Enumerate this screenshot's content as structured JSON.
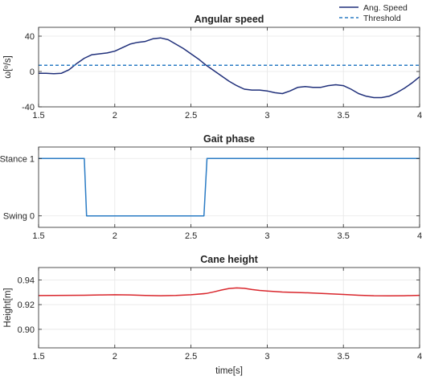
{
  "chart_data": [
    {
      "type": "line",
      "title": "Angular speed",
      "ylabel": "ω[º/s]",
      "xlabel": "",
      "xlim": [
        1.5,
        4
      ],
      "ylim": [
        -40,
        50
      ],
      "xticks": [
        "1.5",
        "2",
        "2.5",
        "3",
        "3.5",
        "4"
      ],
      "yticks": [
        {
          "value": 40,
          "label": "40"
        },
        {
          "value": 0,
          "label": "0"
        },
        {
          "value": -40,
          "label": "-40"
        }
      ],
      "grid": true,
      "legend": "top-right",
      "series": [
        {
          "name": "Ang. Speed",
          "color": "#1f2f7a",
          "style": "solid",
          "x": [
            1.5,
            1.55,
            1.6,
            1.65,
            1.7,
            1.75,
            1.8,
            1.85,
            1.9,
            1.95,
            2.0,
            2.05,
            2.1,
            2.15,
            2.2,
            2.25,
            2.3,
            2.35,
            2.4,
            2.45,
            2.5,
            2.55,
            2.6,
            2.65,
            2.7,
            2.75,
            2.8,
            2.85,
            2.9,
            2.95,
            3.0,
            3.05,
            3.1,
            3.15,
            3.2,
            3.25,
            3.3,
            3.35,
            3.4,
            3.45,
            3.5,
            3.55,
            3.6,
            3.65,
            3.7,
            3.75,
            3.8,
            3.85,
            3.9,
            3.95,
            4.0
          ],
          "y": [
            -2,
            -2,
            -2.5,
            -2,
            2,
            9,
            15,
            19,
            20,
            21,
            23,
            27,
            31,
            33,
            34,
            37,
            38,
            36,
            31,
            26,
            20,
            14,
            7,
            1,
            -5,
            -11,
            -16,
            -20,
            -21,
            -21,
            -22,
            -24,
            -25,
            -22,
            -18,
            -17,
            -18,
            -18,
            -16,
            -15,
            -16,
            -20,
            -25,
            -28,
            -29.5,
            -29.5,
            -28,
            -24,
            -19,
            -13,
            -6
          ]
        },
        {
          "name": "Threshold",
          "color": "#2a7bc4",
          "style": "dashed",
          "x": [
            1.5,
            4.0
          ],
          "y": [
            7,
            7
          ]
        }
      ]
    },
    {
      "type": "line",
      "title": "Gait phase",
      "ylabel": "",
      "xlabel": "",
      "xlim": [
        1.5,
        4
      ],
      "ylim": [
        -0.2,
        1.2
      ],
      "xticks": [
        "1.5",
        "2",
        "2.5",
        "3",
        "3.5",
        "4"
      ],
      "yticks": [
        {
          "value": 1,
          "label": "Stance 1"
        },
        {
          "value": 0,
          "label": "Swing 0"
        }
      ],
      "grid": true,
      "series": [
        {
          "color": "#2a7bc4",
          "style": "solid",
          "x": [
            1.5,
            1.8,
            1.815,
            2.585,
            2.605,
            4.0
          ],
          "y": [
            1,
            1,
            0,
            0,
            1,
            1
          ]
        }
      ]
    },
    {
      "type": "line",
      "title": "Cane height",
      "ylabel": "Height[m]",
      "xlabel": "time[s]",
      "xlim": [
        1.5,
        4
      ],
      "ylim": [
        0.885,
        0.95
      ],
      "xticks": [
        "1.5",
        "2",
        "2.5",
        "3",
        "3.5",
        "4"
      ],
      "yticks": [
        {
          "value": 0.94,
          "label": "0.94"
        },
        {
          "value": 0.92,
          "label": "0.92"
        },
        {
          "value": 0.9,
          "label": "0.90"
        }
      ],
      "grid": true,
      "series": [
        {
          "color": "#d9262c",
          "style": "solid",
          "x": [
            1.5,
            1.6,
            1.7,
            1.8,
            1.9,
            2.0,
            2.1,
            2.2,
            2.3,
            2.4,
            2.5,
            2.6,
            2.65,
            2.7,
            2.75,
            2.8,
            2.85,
            2.9,
            2.95,
            3.0,
            3.1,
            3.2,
            3.3,
            3.4,
            3.5,
            3.6,
            3.7,
            3.8,
            3.9,
            4.0
          ],
          "y": [
            0.9273,
            0.9274,
            0.9275,
            0.9276,
            0.9278,
            0.928,
            0.9278,
            0.9274,
            0.9272,
            0.9274,
            0.928,
            0.929,
            0.9303,
            0.9318,
            0.933,
            0.9335,
            0.9332,
            0.9322,
            0.9315,
            0.931,
            0.9302,
            0.9298,
            0.9294,
            0.9288,
            0.9282,
            0.9276,
            0.9272,
            0.9271,
            0.9272,
            0.9275
          ]
        }
      ]
    }
  ]
}
